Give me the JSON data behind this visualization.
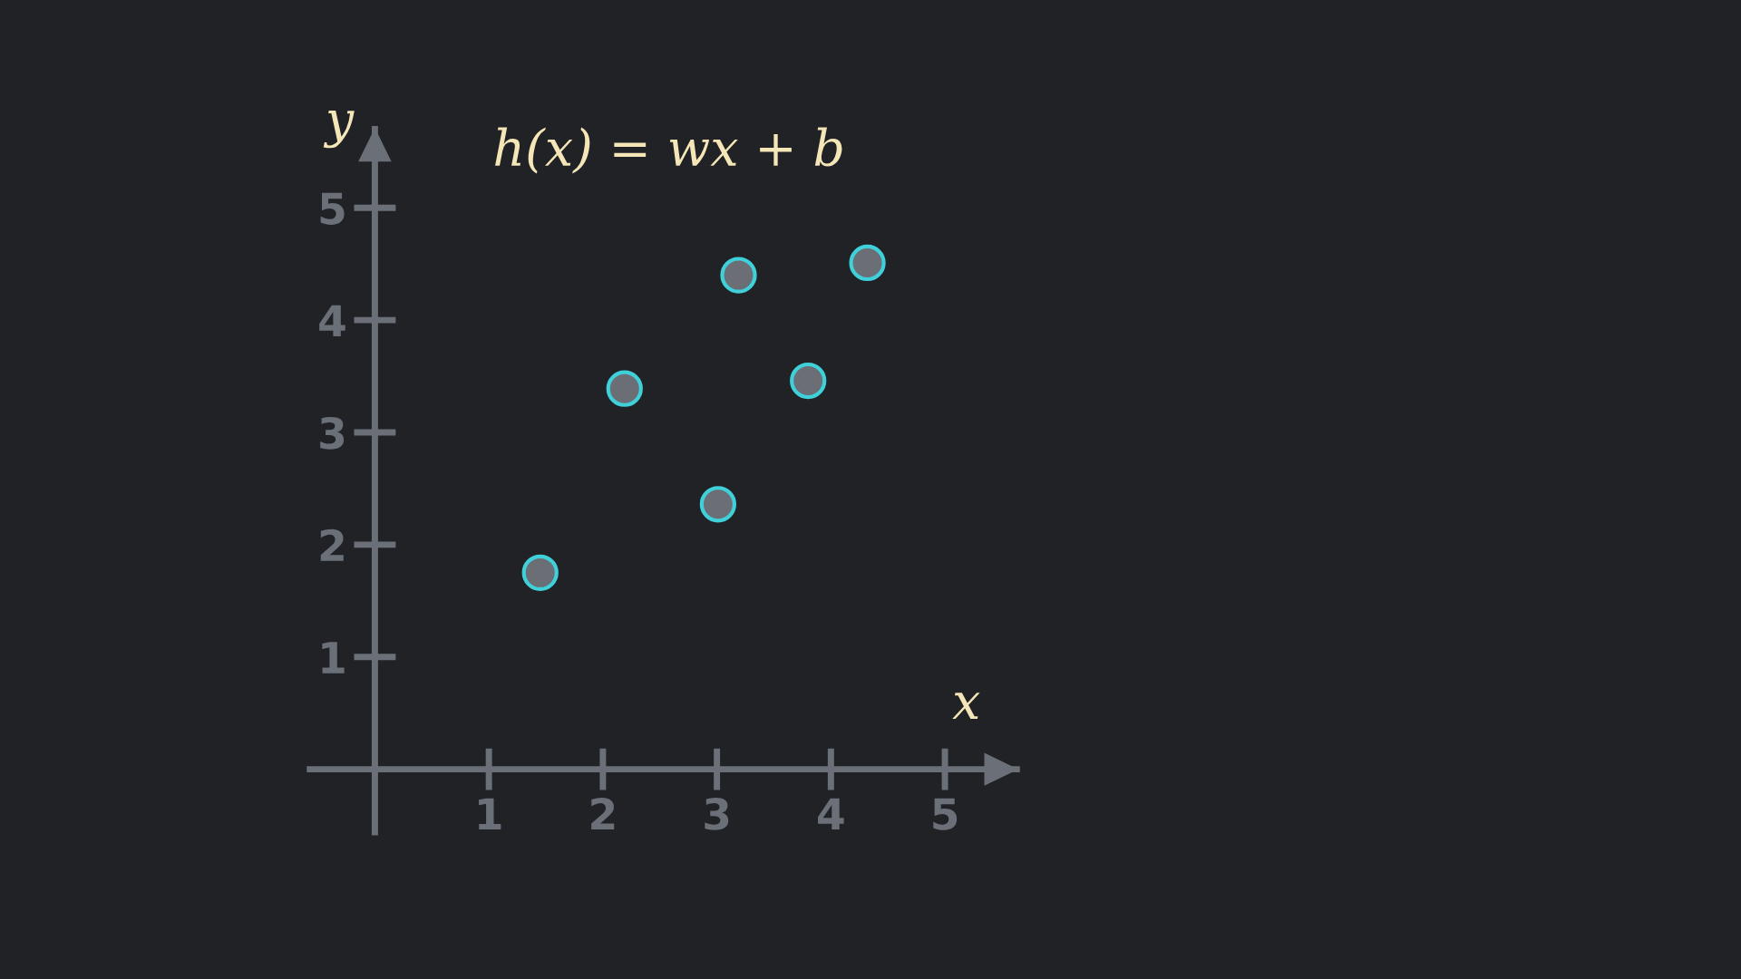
{
  "chart_data": {
    "type": "scatter",
    "title": "h(x) = wx + b",
    "xlabel": "x",
    "ylabel": "y",
    "x": [
      1.45,
      2.19,
      3.01,
      3.19,
      3.8,
      4.32
    ],
    "series": [
      {
        "color": "#6b6e74",
        "values": [
          1.75,
          3.39,
          2.36,
          4.4,
          3.46,
          4.51
        ]
      }
    ],
    "xlim": [
      -0.57,
      5.63
    ],
    "ylim": [
      -0.56,
      5.7
    ],
    "xticks": [
      1,
      2,
      3,
      4,
      5
    ],
    "yticks": [
      1,
      2,
      3,
      4,
      5
    ],
    "grid": false,
    "legend": false,
    "marker": "circle"
  }
}
